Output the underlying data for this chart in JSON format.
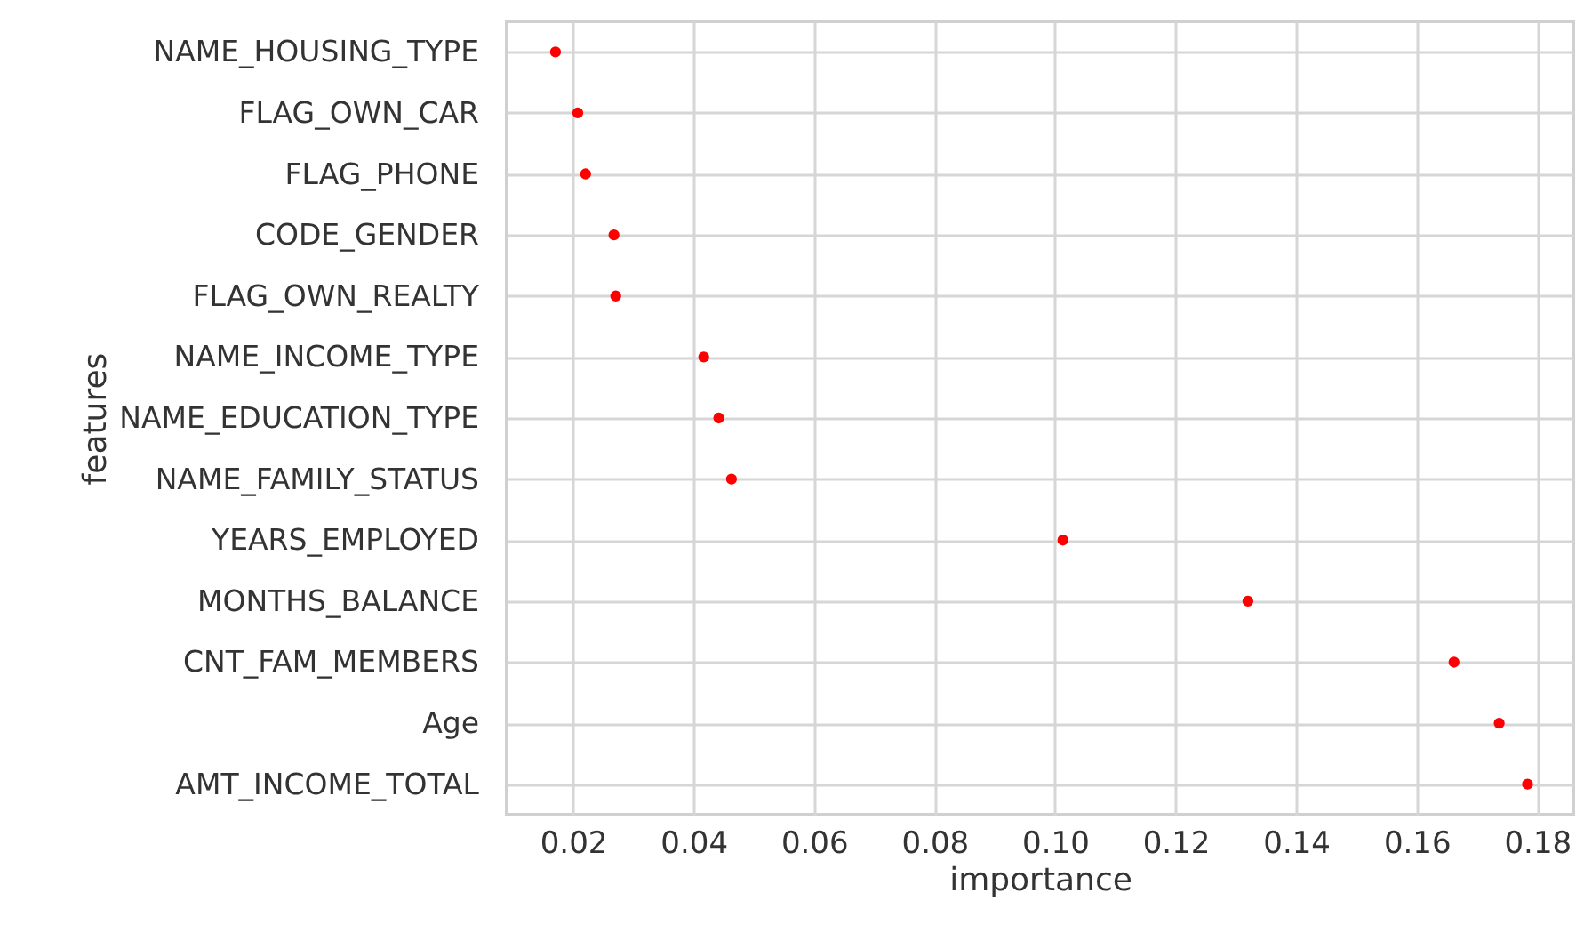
{
  "chart_data": {
    "type": "scatter",
    "orientation": "horizontal",
    "xlabel": "importance",
    "ylabel": "features",
    "categories": [
      "NAME_HOUSING_TYPE",
      "FLAG_OWN_CAR",
      "FLAG_PHONE",
      "CODE_GENDER",
      "FLAG_OWN_REALTY",
      "NAME_INCOME_TYPE",
      "NAME_EDUCATION_TYPE",
      "NAME_FAMILY_STATUS",
      "YEARS_EMPLOYED",
      "MONTHS_BALANCE",
      "CNT_FAM_MEMBERS",
      "Age",
      "AMT_INCOME_TOTAL"
    ],
    "values": [
      0.0171,
      0.0208,
      0.0221,
      0.0268,
      0.0271,
      0.0417,
      0.0442,
      0.0463,
      0.1013,
      0.132,
      0.1662,
      0.1737,
      0.1784
    ],
    "color": "#ff0000",
    "marker": "circle",
    "grid": true,
    "xlim": [
      0.009,
      0.186
    ],
    "xticks": [
      0.02,
      0.04,
      0.06,
      0.08,
      {
        "value": 0.1,
        "label": "0.10"
      },
      0.12,
      0.14,
      0.16,
      0.18
    ]
  }
}
